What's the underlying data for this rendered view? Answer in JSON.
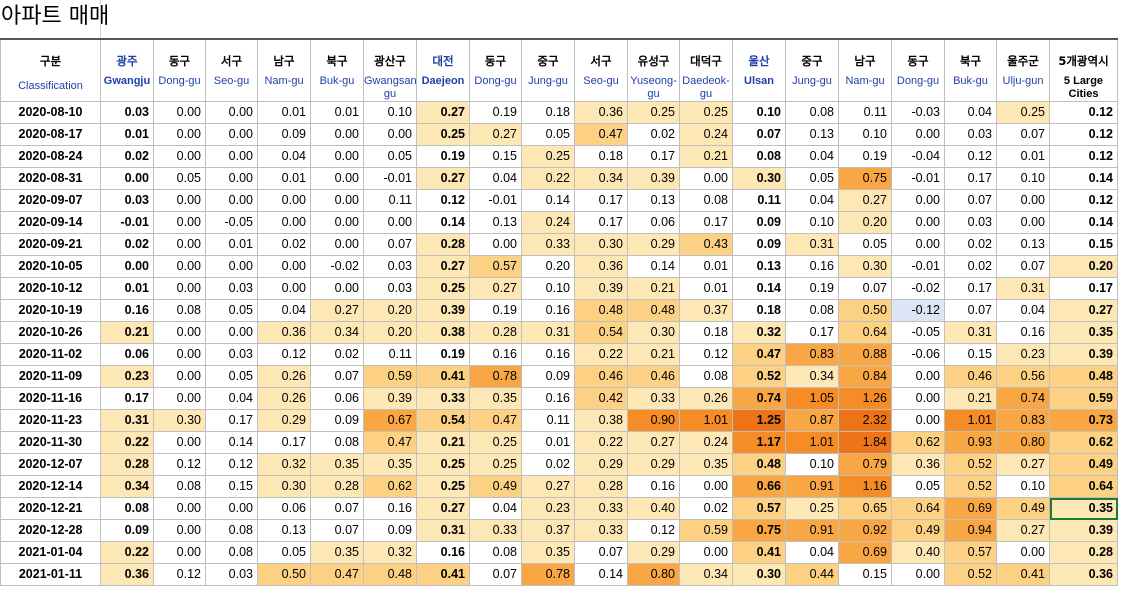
{
  "title": "아파트 매매",
  "colors": {
    "l1": "#fde7b4",
    "l2": "#fcd184",
    "l3": "#f9a644",
    "l4": "#f58c25",
    "l5": "#ef7418",
    "neg": "#dbe5f6",
    "header_blue": "#1f3fa8",
    "selection": "#1e7b34"
  },
  "header_first": {
    "ko": "구분",
    "en": "Classification"
  },
  "columns": [
    {
      "ko": "광주",
      "en": "Gwangju",
      "city": true
    },
    {
      "ko": "동구",
      "en": "Dong-gu"
    },
    {
      "ko": "서구",
      "en": "Seo-gu"
    },
    {
      "ko": "남구",
      "en": "Nam-gu"
    },
    {
      "ko": "북구",
      "en": "Buk-gu"
    },
    {
      "ko": "광산구",
      "en": "Gwangsan-gu"
    },
    {
      "ko": "대전",
      "en": "Daejeon",
      "city": true
    },
    {
      "ko": "동구",
      "en": "Dong-gu"
    },
    {
      "ko": "중구",
      "en": "Jung-gu"
    },
    {
      "ko": "서구",
      "en": "Seo-gu"
    },
    {
      "ko": "유성구",
      "en": "Yuseong-gu"
    },
    {
      "ko": "대덕구",
      "en": "Daedeok-gu"
    },
    {
      "ko": "울산",
      "en": "Ulsan",
      "city": true
    },
    {
      "ko": "중구",
      "en": "Jung-gu"
    },
    {
      "ko": "남구",
      "en": "Nam-gu"
    },
    {
      "ko": "동구",
      "en": "Dong-gu"
    },
    {
      "ko": "북구",
      "en": "Buk-gu"
    },
    {
      "ko": "울주군",
      "en": "Ulju-gun"
    },
    {
      "ko": "5개광역시",
      "en": "5 Large Cities",
      "total": true
    }
  ],
  "rows": [
    {
      "date": "2020-08-10",
      "values": [
        "0.03",
        "0.00",
        "0.00",
        "0.01",
        "0.01",
        "0.10",
        "0.27",
        "0.19",
        "0.18",
        "0.36",
        "0.25",
        "0.25",
        "0.10",
        "0.08",
        "0.11",
        "-0.03",
        "0.04",
        "0.25",
        "0.12"
      ],
      "shades": [
        0,
        0,
        0,
        0,
        0,
        0,
        1,
        0,
        0,
        1,
        1,
        1,
        0,
        0,
        0,
        0,
        0,
        1,
        0
      ]
    },
    {
      "date": "2020-08-17",
      "values": [
        "0.01",
        "0.00",
        "0.00",
        "0.09",
        "0.00",
        "0.00",
        "0.25",
        "0.27",
        "0.05",
        "0.47",
        "0.02",
        "0.24",
        "0.07",
        "0.13",
        "0.10",
        "0.00",
        "0.03",
        "0.07",
        "0.12"
      ],
      "shades": [
        0,
        0,
        0,
        0,
        0,
        0,
        1,
        1,
        0,
        2,
        0,
        1,
        0,
        0,
        0,
        0,
        0,
        0,
        0
      ]
    },
    {
      "date": "2020-08-24",
      "values": [
        "0.02",
        "0.00",
        "0.00",
        "0.04",
        "0.00",
        "0.05",
        "0.19",
        "0.15",
        "0.25",
        "0.18",
        "0.17",
        "0.21",
        "0.08",
        "0.04",
        "0.19",
        "-0.04",
        "0.12",
        "0.01",
        "0.12"
      ],
      "shades": [
        0,
        0,
        0,
        0,
        0,
        0,
        0,
        0,
        1,
        0,
        0,
        1,
        0,
        0,
        0,
        0,
        0,
        0,
        0
      ]
    },
    {
      "date": "2020-08-31",
      "values": [
        "0.00",
        "0.05",
        "0.00",
        "0.01",
        "0.00",
        "-0.01",
        "0.27",
        "0.04",
        "0.22",
        "0.34",
        "0.39",
        "0.00",
        "0.30",
        "0.05",
        "0.75",
        "-0.01",
        "0.17",
        "0.10",
        "0.14"
      ],
      "shades": [
        0,
        0,
        0,
        0,
        0,
        0,
        1,
        0,
        1,
        1,
        1,
        0,
        1,
        0,
        3,
        0,
        0,
        0,
        0
      ]
    },
    {
      "date": "2020-09-07",
      "values": [
        "0.03",
        "0.00",
        "0.00",
        "0.00",
        "0.00",
        "0.11",
        "0.12",
        "-0.01",
        "0.14",
        "0.17",
        "0.13",
        "0.08",
        "0.11",
        "0.04",
        "0.27",
        "0.00",
        "0.07",
        "0.00",
        "0.12"
      ],
      "shades": [
        0,
        0,
        0,
        0,
        0,
        0,
        0,
        0,
        0,
        0,
        0,
        0,
        0,
        0,
        1,
        0,
        0,
        0,
        0
      ]
    },
    {
      "date": "2020-09-14",
      "values": [
        "-0.01",
        "0.00",
        "-0.05",
        "0.00",
        "0.00",
        "0.00",
        "0.14",
        "0.13",
        "0.24",
        "0.17",
        "0.06",
        "0.17",
        "0.09",
        "0.10",
        "0.20",
        "0.00",
        "0.03",
        "0.00",
        "0.14"
      ],
      "shades": [
        0,
        0,
        0,
        0,
        0,
        0,
        0,
        0,
        1,
        0,
        0,
        0,
        0,
        0,
        1,
        0,
        0,
        0,
        0
      ]
    },
    {
      "date": "2020-09-21",
      "values": [
        "0.02",
        "0.00",
        "0.01",
        "0.02",
        "0.00",
        "0.07",
        "0.28",
        "0.00",
        "0.33",
        "0.30",
        "0.29",
        "0.43",
        "0.09",
        "0.31",
        "0.05",
        "0.00",
        "0.02",
        "0.13",
        "0.15"
      ],
      "shades": [
        0,
        0,
        0,
        0,
        0,
        0,
        1,
        0,
        1,
        1,
        1,
        2,
        0,
        1,
        0,
        0,
        0,
        0,
        0
      ]
    },
    {
      "date": "2020-10-05",
      "values": [
        "0.00",
        "0.00",
        "0.00",
        "0.00",
        "-0.02",
        "0.03",
        "0.27",
        "0.57",
        "0.20",
        "0.36",
        "0.14",
        "0.01",
        "0.13",
        "0.16",
        "0.30",
        "-0.01",
        "0.02",
        "0.07",
        "0.20"
      ],
      "shades": [
        0,
        0,
        0,
        0,
        0,
        0,
        1,
        2,
        0,
        1,
        0,
        0,
        0,
        0,
        1,
        0,
        0,
        0,
        1
      ]
    },
    {
      "date": "2020-10-12",
      "values": [
        "0.01",
        "0.00",
        "0.03",
        "0.00",
        "0.00",
        "0.03",
        "0.25",
        "0.27",
        "0.10",
        "0.39",
        "0.21",
        "0.01",
        "0.14",
        "0.19",
        "0.07",
        "-0.02",
        "0.17",
        "0.31",
        "0.17"
      ],
      "shades": [
        0,
        0,
        0,
        0,
        0,
        0,
        1,
        1,
        0,
        1,
        1,
        0,
        0,
        0,
        0,
        0,
        0,
        1,
        0
      ]
    },
    {
      "date": "2020-10-19",
      "values": [
        "0.16",
        "0.08",
        "0.05",
        "0.04",
        "0.27",
        "0.20",
        "0.39",
        "0.19",
        "0.16",
        "0.48",
        "0.48",
        "0.37",
        "0.18",
        "0.08",
        "0.50",
        "-0.12",
        "0.07",
        "0.04",
        "0.27"
      ],
      "shades": [
        0,
        0,
        0,
        0,
        1,
        1,
        1,
        0,
        0,
        2,
        2,
        1,
        0,
        0,
        2,
        -1,
        0,
        0,
        1
      ]
    },
    {
      "date": "2020-10-26",
      "values": [
        "0.21",
        "0.00",
        "0.00",
        "0.36",
        "0.34",
        "0.20",
        "0.38",
        "0.28",
        "0.31",
        "0.54",
        "0.30",
        "0.18",
        "0.32",
        "0.17",
        "0.64",
        "-0.05",
        "0.31",
        "0.16",
        "0.35"
      ],
      "shades": [
        1,
        0,
        0,
        1,
        1,
        1,
        1,
        1,
        1,
        2,
        1,
        0,
        1,
        0,
        2,
        0,
        1,
        0,
        1
      ]
    },
    {
      "date": "2020-11-02",
      "values": [
        "0.06",
        "0.00",
        "0.03",
        "0.12",
        "0.02",
        "0.11",
        "0.19",
        "0.16",
        "0.16",
        "0.22",
        "0.21",
        "0.12",
        "0.47",
        "0.83",
        "0.88",
        "-0.06",
        "0.15",
        "0.23",
        "0.39"
      ],
      "shades": [
        0,
        0,
        0,
        0,
        0,
        0,
        0,
        0,
        0,
        1,
        1,
        0,
        2,
        3,
        3,
        0,
        0,
        1,
        1
      ]
    },
    {
      "date": "2020-11-09",
      "values": [
        "0.23",
        "0.00",
        "0.05",
        "0.26",
        "0.07",
        "0.59",
        "0.41",
        "0.78",
        "0.09",
        "0.46",
        "0.46",
        "0.08",
        "0.52",
        "0.34",
        "0.84",
        "0.00",
        "0.46",
        "0.56",
        "0.48"
      ],
      "shades": [
        1,
        0,
        0,
        1,
        0,
        2,
        2,
        3,
        0,
        2,
        2,
        0,
        2,
        1,
        3,
        0,
        2,
        2,
        2
      ]
    },
    {
      "date": "2020-11-16",
      "values": [
        "0.17",
        "0.00",
        "0.04",
        "0.26",
        "0.06",
        "0.39",
        "0.33",
        "0.35",
        "0.16",
        "0.42",
        "0.33",
        "0.26",
        "0.74",
        "1.05",
        "1.26",
        "0.00",
        "0.21",
        "0.74",
        "0.59"
      ],
      "shades": [
        0,
        0,
        0,
        1,
        0,
        1,
        1,
        1,
        0,
        2,
        1,
        1,
        3,
        4,
        4,
        0,
        1,
        3,
        2
      ]
    },
    {
      "date": "2020-11-23",
      "values": [
        "0.31",
        "0.30",
        "0.17",
        "0.29",
        "0.09",
        "0.67",
        "0.54",
        "0.47",
        "0.11",
        "0.38",
        "0.90",
        "1.01",
        "1.25",
        "0.87",
        "2.32",
        "0.00",
        "1.01",
        "0.83",
        "0.73"
      ],
      "shades": [
        1,
        1,
        0,
        1,
        0,
        3,
        2,
        2,
        0,
        1,
        4,
        4,
        5,
        3,
        5,
        0,
        4,
        3,
        3
      ]
    },
    {
      "date": "2020-11-30",
      "values": [
        "0.22",
        "0.00",
        "0.14",
        "0.17",
        "0.08",
        "0.47",
        "0.21",
        "0.25",
        "0.01",
        "0.22",
        "0.27",
        "0.24",
        "1.17",
        "1.01",
        "1.84",
        "0.62",
        "0.93",
        "0.80",
        "0.62"
      ],
      "shades": [
        1,
        0,
        0,
        0,
        0,
        2,
        1,
        1,
        0,
        1,
        1,
        1,
        4,
        4,
        5,
        2,
        3,
        3,
        2
      ]
    },
    {
      "date": "2020-12-07",
      "values": [
        "0.28",
        "0.12",
        "0.12",
        "0.32",
        "0.35",
        "0.35",
        "0.25",
        "0.25",
        "0.02",
        "0.29",
        "0.29",
        "0.35",
        "0.48",
        "0.10",
        "0.79",
        "0.36",
        "0.52",
        "0.27",
        "0.49"
      ],
      "shades": [
        1,
        0,
        0,
        1,
        1,
        1,
        1,
        1,
        0,
        1,
        1,
        1,
        2,
        0,
        3,
        1,
        2,
        1,
        2
      ]
    },
    {
      "date": "2020-12-14",
      "values": [
        "0.34",
        "0.08",
        "0.15",
        "0.30",
        "0.28",
        "0.62",
        "0.25",
        "0.49",
        "0.27",
        "0.28",
        "0.16",
        "0.00",
        "0.66",
        "0.91",
        "1.16",
        "0.05",
        "0.52",
        "0.10",
        "0.64"
      ],
      "shades": [
        1,
        0,
        0,
        1,
        1,
        2,
        1,
        2,
        1,
        1,
        0,
        0,
        3,
        3,
        4,
        0,
        2,
        0,
        2
      ]
    },
    {
      "date": "2020-12-21",
      "values": [
        "0.08",
        "0.00",
        "0.00",
        "0.06",
        "0.07",
        "0.16",
        "0.27",
        "0.04",
        "0.23",
        "0.33",
        "0.40",
        "0.02",
        "0.57",
        "0.25",
        "0.65",
        "0.64",
        "0.69",
        "0.49",
        "0.35"
      ],
      "shades": [
        0,
        0,
        0,
        0,
        0,
        0,
        1,
        0,
        1,
        1,
        1,
        0,
        2,
        1,
        2,
        2,
        3,
        2,
        1
      ]
    },
    {
      "date": "2020-12-28",
      "values": [
        "0.09",
        "0.00",
        "0.08",
        "0.13",
        "0.07",
        "0.09",
        "0.31",
        "0.33",
        "0.37",
        "0.33",
        "0.12",
        "0.59",
        "0.75",
        "0.91",
        "0.92",
        "0.49",
        "0.94",
        "0.27",
        "0.39"
      ],
      "shades": [
        0,
        0,
        0,
        0,
        0,
        0,
        1,
        1,
        1,
        1,
        0,
        2,
        3,
        3,
        3,
        2,
        3,
        1,
        1
      ]
    },
    {
      "date": "2021-01-04",
      "values": [
        "0.22",
        "0.00",
        "0.08",
        "0.05",
        "0.35",
        "0.32",
        "0.16",
        "0.08",
        "0.35",
        "0.07",
        "0.29",
        "0.00",
        "0.41",
        "0.04",
        "0.69",
        "0.40",
        "0.57",
        "0.00",
        "0.28"
      ],
      "shades": [
        1,
        0,
        0,
        0,
        1,
        1,
        0,
        0,
        1,
        0,
        1,
        0,
        2,
        0,
        3,
        1,
        2,
        0,
        1
      ]
    },
    {
      "date": "2021-01-11",
      "values": [
        "0.36",
        "0.12",
        "0.03",
        "0.50",
        "0.47",
        "0.48",
        "0.41",
        "0.07",
        "0.78",
        "0.14",
        "0.80",
        "0.34",
        "0.30",
        "0.44",
        "0.15",
        "0.00",
        "0.52",
        "0.41",
        "0.36"
      ],
      "shades": [
        1,
        0,
        0,
        2,
        2,
        2,
        2,
        0,
        3,
        0,
        3,
        1,
        1,
        2,
        0,
        0,
        2,
        2,
        1
      ]
    }
  ]
}
